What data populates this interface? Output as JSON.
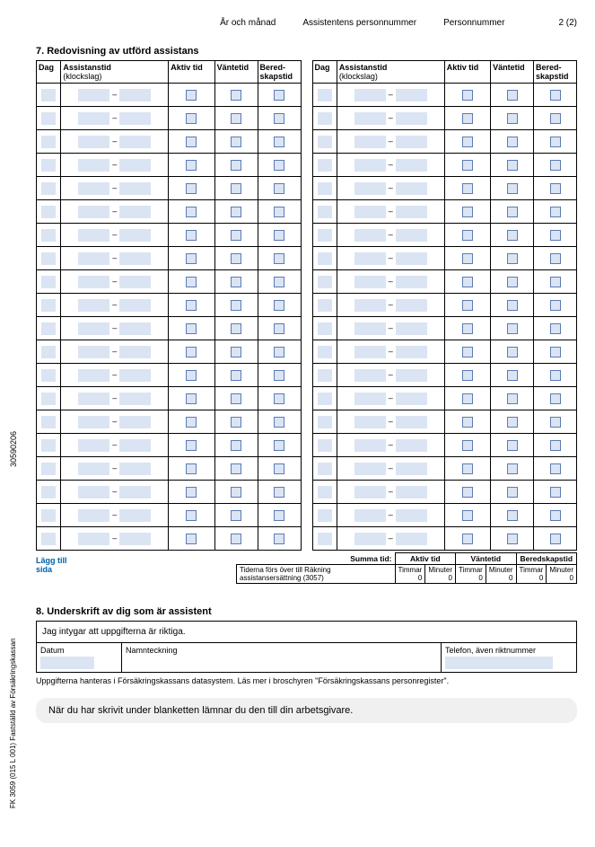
{
  "header": {
    "c1": "År och månad",
    "c2": "Assistentens personnummer",
    "c3": "Personnummer",
    "page": "2 (2)"
  },
  "section7": {
    "title": "7. Redovisning av utförd assistans",
    "cols": {
      "dag": "Dag",
      "assistanstid": "Assistanstid",
      "klockslag": "(klockslag)",
      "aktiv": "Aktiv tid",
      "vantetid": "Väntetid",
      "bered": "Bered-\nskapstid"
    },
    "dash": "–",
    "row_count": 20,
    "add_link": "Lägg till\nsida"
  },
  "summa": {
    "label": "Summa tid:",
    "aktiv": "Aktiv tid",
    "vantetid": "Väntetid",
    "bered": "Beredskapstid",
    "note": "Tiderna förs över till Räkning assistansersättning (3057)",
    "timmar": "Timmar",
    "minuter": "Minuter",
    "val": "0"
  },
  "section8": {
    "title": "8. Underskrift av dig som är assistent",
    "intygar": "Jag intygar att uppgifterna är riktiga.",
    "datum": "Datum",
    "namn": "Namnteckning",
    "tel": "Telefon, även riktnummer",
    "note": "Uppgifterna hanteras i Försäkringskassans datasystem. Läs mer i broschyren \"Försäkringskassans personregister\"."
  },
  "final": "När du har skrivit under blanketten lämnar du den till din arbetsgivare.",
  "side": {
    "code": "30590206",
    "code2": "FK 3059 (015 L 001) Fastställd av Försäkringskassan"
  },
  "colors": {
    "field_bg": "#dbe4f3",
    "chk_border": "#5b7bb5"
  }
}
